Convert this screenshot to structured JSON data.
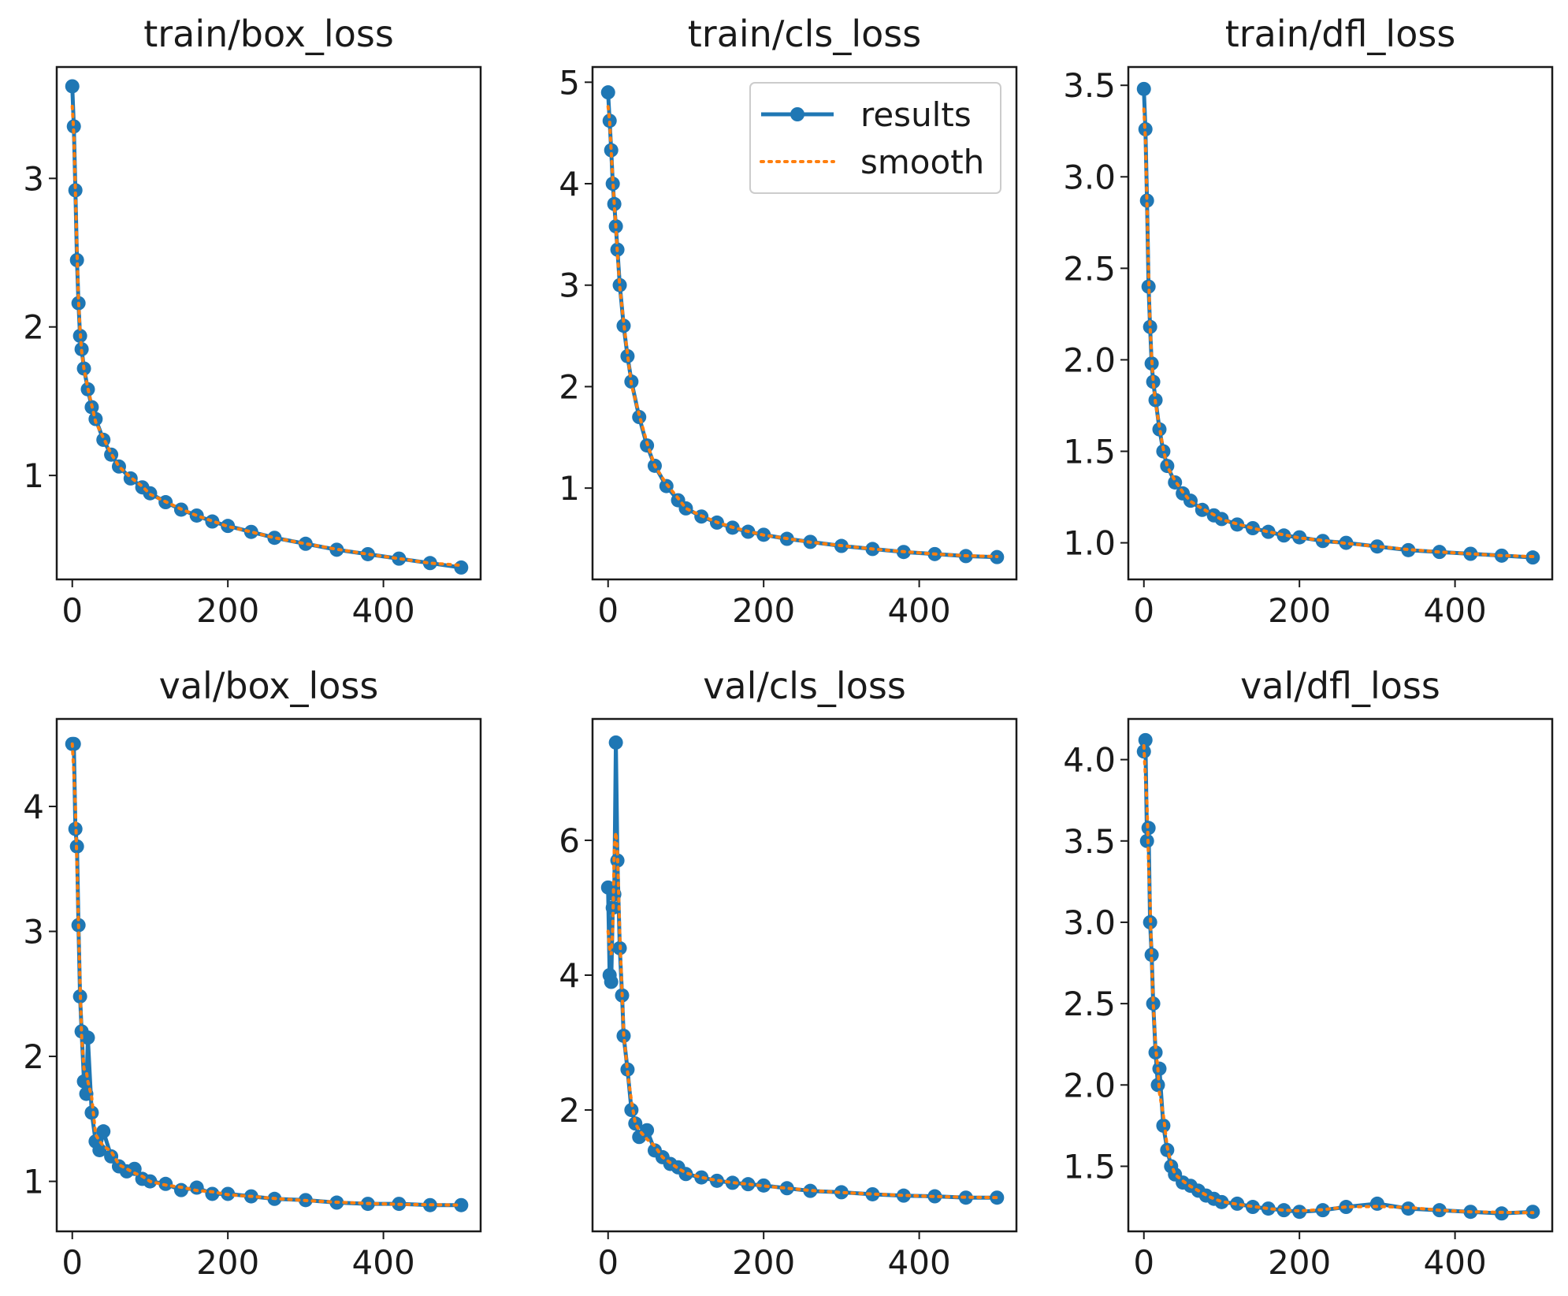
{
  "legend": {
    "labels": [
      "results",
      "smooth"
    ]
  },
  "colors": {
    "results": "#1f77b4",
    "smooth": "#ff7f0e",
    "frame": "#1a1a1a",
    "legend_border": "#cccccc"
  },
  "chart_data": [
    {
      "type": "line",
      "title": "train/box_loss",
      "xlim": [
        -20,
        525
      ],
      "ylim": [
        0.3,
        3.75
      ],
      "xticks": [
        0,
        200,
        400
      ],
      "xtick_labels": [
        "0",
        "200",
        "400"
      ],
      "yticks": [
        1,
        2,
        3
      ],
      "ytick_labels": [
        "1",
        "2",
        "3"
      ],
      "series": [
        {
          "name": "results",
          "x": [
            0,
            2,
            4,
            6,
            8,
            10,
            12,
            15,
            20,
            25,
            30,
            40,
            50,
            60,
            75,
            90,
            100,
            120,
            140,
            160,
            180,
            200,
            230,
            260,
            300,
            340,
            380,
            420,
            460,
            500
          ],
          "y": [
            3.62,
            3.35,
            2.92,
            2.45,
            2.16,
            1.94,
            1.85,
            1.72,
            1.58,
            1.46,
            1.38,
            1.24,
            1.14,
            1.06,
            0.98,
            0.92,
            0.88,
            0.82,
            0.77,
            0.73,
            0.69,
            0.66,
            0.62,
            0.58,
            0.54,
            0.5,
            0.47,
            0.44,
            0.41,
            0.38
          ]
        }
      ],
      "legend": false
    },
    {
      "type": "line",
      "title": "train/cls_loss",
      "xlim": [
        -20,
        525
      ],
      "ylim": [
        0.1,
        5.15
      ],
      "xticks": [
        0,
        200,
        400
      ],
      "xtick_labels": [
        "0",
        "200",
        "400"
      ],
      "yticks": [
        1,
        2,
        3,
        4,
        5
      ],
      "ytick_labels": [
        "1",
        "2",
        "3",
        "4",
        "5"
      ],
      "series": [
        {
          "name": "results",
          "x": [
            0,
            2,
            4,
            6,
            8,
            10,
            12,
            15,
            20,
            25,
            30,
            40,
            50,
            60,
            75,
            90,
            100,
            120,
            140,
            160,
            180,
            200,
            230,
            260,
            300,
            340,
            380,
            420,
            460,
            500
          ],
          "y": [
            4.9,
            4.62,
            4.33,
            4.0,
            3.8,
            3.58,
            3.35,
            3.0,
            2.6,
            2.3,
            2.05,
            1.7,
            1.42,
            1.22,
            1.02,
            0.88,
            0.8,
            0.72,
            0.66,
            0.61,
            0.57,
            0.54,
            0.5,
            0.47,
            0.43,
            0.4,
            0.37,
            0.35,
            0.33,
            0.32
          ]
        }
      ],
      "legend": true
    },
    {
      "type": "line",
      "title": "train/dfl_loss",
      "xlim": [
        -20,
        525
      ],
      "ylim": [
        0.8,
        3.6
      ],
      "xticks": [
        0,
        200,
        400
      ],
      "xtick_labels": [
        "0",
        "200",
        "400"
      ],
      "yticks": [
        1.0,
        1.5,
        2.0,
        2.5,
        3.0,
        3.5
      ],
      "ytick_labels": [
        "1.0",
        "1.5",
        "2.0",
        "2.5",
        "3.0",
        "3.5"
      ],
      "series": [
        {
          "name": "results",
          "x": [
            0,
            2,
            4,
            6,
            8,
            10,
            12,
            15,
            20,
            25,
            30,
            40,
            50,
            60,
            75,
            90,
            100,
            120,
            140,
            160,
            180,
            200,
            230,
            260,
            300,
            340,
            380,
            420,
            460,
            500
          ],
          "y": [
            3.48,
            3.26,
            2.87,
            2.4,
            2.18,
            1.98,
            1.88,
            1.78,
            1.62,
            1.5,
            1.42,
            1.33,
            1.27,
            1.23,
            1.18,
            1.15,
            1.13,
            1.1,
            1.08,
            1.06,
            1.04,
            1.03,
            1.01,
            1.0,
            0.98,
            0.96,
            0.95,
            0.94,
            0.93,
            0.92
          ]
        }
      ],
      "legend": false
    },
    {
      "type": "line",
      "title": "val/box_loss",
      "xlim": [
        -20,
        525
      ],
      "ylim": [
        0.6,
        4.7
      ],
      "xticks": [
        0,
        200,
        400
      ],
      "xtick_labels": [
        "0",
        "200",
        "400"
      ],
      "yticks": [
        1,
        2,
        3,
        4
      ],
      "ytick_labels": [
        "1",
        "2",
        "3",
        "4"
      ],
      "series": [
        {
          "name": "results",
          "x": [
            0,
            2,
            4,
            6,
            8,
            10,
            12,
            15,
            18,
            20,
            25,
            30,
            35,
            40,
            50,
            60,
            70,
            80,
            90,
            100,
            120,
            140,
            160,
            180,
            200,
            230,
            260,
            300,
            340,
            380,
            420,
            460,
            500
          ],
          "y": [
            4.5,
            4.5,
            3.82,
            3.68,
            3.05,
            2.48,
            2.2,
            1.8,
            1.7,
            2.15,
            1.55,
            1.32,
            1.25,
            1.4,
            1.2,
            1.12,
            1.08,
            1.1,
            1.02,
            1.0,
            0.98,
            0.93,
            0.95,
            0.9,
            0.9,
            0.88,
            0.86,
            0.85,
            0.83,
            0.82,
            0.82,
            0.81,
            0.81
          ]
        }
      ],
      "legend": false
    },
    {
      "type": "line",
      "title": "val/cls_loss",
      "xlim": [
        -20,
        525
      ],
      "ylim": [
        0.2,
        7.8
      ],
      "xticks": [
        0,
        200,
        400
      ],
      "xtick_labels": [
        "0",
        "200",
        "400"
      ],
      "yticks": [
        2,
        4,
        6
      ],
      "ytick_labels": [
        "2",
        "4",
        "6"
      ],
      "series": [
        {
          "name": "results",
          "x": [
            0,
            2,
            4,
            6,
            8,
            10,
            12,
            15,
            18,
            20,
            25,
            30,
            35,
            40,
            50,
            60,
            70,
            80,
            90,
            100,
            120,
            140,
            160,
            180,
            200,
            230,
            260,
            300,
            340,
            380,
            420,
            460,
            500
          ],
          "y": [
            5.3,
            4.0,
            3.9,
            5.0,
            5.2,
            7.45,
            5.7,
            4.4,
            3.7,
            3.1,
            2.6,
            2.0,
            1.8,
            1.6,
            1.7,
            1.4,
            1.3,
            1.2,
            1.15,
            1.05,
            1.0,
            0.95,
            0.92,
            0.9,
            0.88,
            0.84,
            0.8,
            0.78,
            0.75,
            0.73,
            0.72,
            0.7,
            0.7
          ]
        }
      ],
      "legend": false
    },
    {
      "type": "line",
      "title": "val/dfl_loss",
      "xlim": [
        -20,
        525
      ],
      "ylim": [
        1.1,
        4.25
      ],
      "xticks": [
        0,
        200,
        400
      ],
      "xtick_labels": [
        "0",
        "200",
        "400"
      ],
      "yticks": [
        1.5,
        2.0,
        2.5,
        3.0,
        3.5,
        4.0
      ],
      "ytick_labels": [
        "1.5",
        "2.0",
        "2.5",
        "3.0",
        "3.5",
        "4.0"
      ],
      "series": [
        {
          "name": "results",
          "x": [
            0,
            2,
            4,
            6,
            8,
            10,
            12,
            15,
            18,
            20,
            25,
            30,
            35,
            40,
            50,
            60,
            70,
            80,
            90,
            100,
            120,
            140,
            160,
            180,
            200,
            230,
            260,
            300,
            340,
            380,
            420,
            460,
            500
          ],
          "y": [
            4.05,
            4.12,
            3.5,
            3.58,
            3.0,
            2.8,
            2.5,
            2.2,
            2.0,
            2.1,
            1.75,
            1.6,
            1.5,
            1.45,
            1.4,
            1.38,
            1.35,
            1.32,
            1.3,
            1.28,
            1.27,
            1.25,
            1.24,
            1.23,
            1.22,
            1.23,
            1.25,
            1.27,
            1.24,
            1.23,
            1.22,
            1.21,
            1.22
          ]
        }
      ],
      "legend": false
    }
  ]
}
